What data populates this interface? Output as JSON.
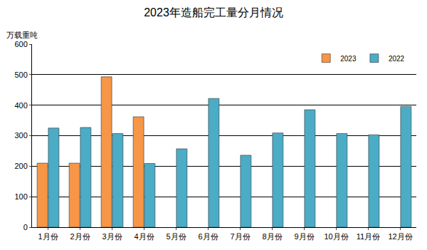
{
  "chart_data": {
    "type": "bar",
    "title": "2023年造船完工量分月情况",
    "y_label": "万载重吨",
    "categories": [
      "1月份",
      "2月份",
      "3月份",
      "4月份",
      "5月份",
      "6月份",
      "7月份",
      "8月份",
      "9月份",
      "10月份",
      "11月份",
      "12月份"
    ],
    "series": [
      {
        "name": "2023",
        "color": "#f79646",
        "values": [
          210,
          210,
          493,
          362,
          null,
          null,
          null,
          null,
          null,
          null,
          null,
          null
        ]
      },
      {
        "name": "2022",
        "color": "#4bacc6",
        "values": [
          325,
          327,
          307,
          209,
          257,
          422,
          236,
          309,
          385,
          307,
          303,
          396
        ]
      }
    ],
    "ylim": [
      0,
      600
    ],
    "yticks": [
      0,
      100,
      200,
      300,
      400,
      500,
      600
    ],
    "grid": true,
    "legend": "top right"
  }
}
